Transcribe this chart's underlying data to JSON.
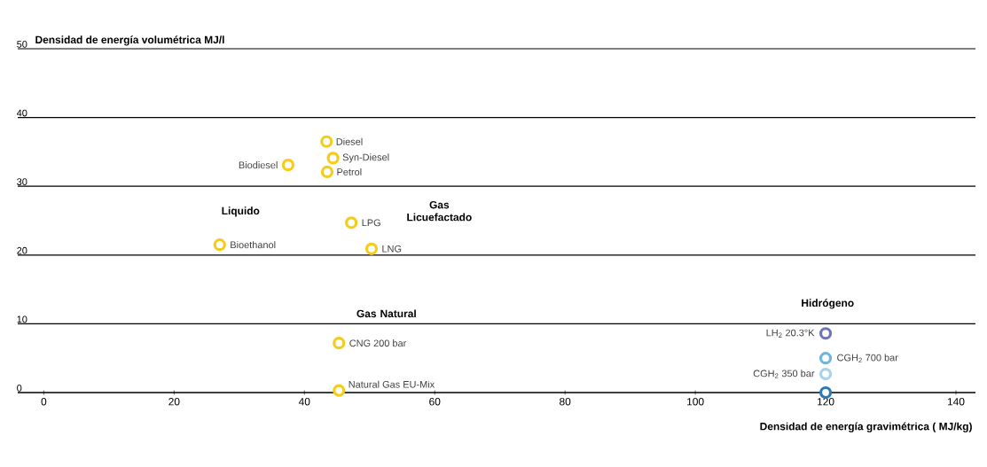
{
  "chart_data": {
    "type": "scatter",
    "xlabel": "Densidad de energía gravimétrica ( MJ/kg)",
    "ylabel": "Densidad de energía volumétrica MJ/l",
    "xlim": [
      -4,
      143
    ],
    "ylim": [
      0,
      50
    ],
    "xticks": [
      0,
      20,
      40,
      60,
      80,
      100,
      120,
      140
    ],
    "yticks": [
      0,
      10,
      20,
      30,
      40,
      50
    ],
    "grid": "y",
    "marker": "circle",
    "series": [
      {
        "color": "#f5cc1a",
        "x": [
          43.4,
          44.4,
          43.5,
          37.5,
          27,
          47.2,
          50.3,
          45.3,
          45.3
        ],
        "values": [
          36.5,
          34.1,
          32.1,
          33.1,
          21.5,
          24.7,
          20.9,
          7.2,
          0.3
        ]
      },
      {
        "colors": [
          "#7074b4",
          "#6db6dc",
          "#a8d3ea",
          "#2a7ab5"
        ],
        "x": [
          120,
          120,
          120,
          120
        ],
        "values": [
          8.6,
          5,
          2.7,
          0
        ]
      }
    ],
    "annotations": [
      {
        "text": "Diesel",
        "x": 43.4,
        "y": 36.5
      },
      {
        "text": "Syn-Diesel",
        "x": 44.4,
        "y": 34.1
      },
      {
        "text": "Petrol",
        "x": 43.5,
        "y": 32.1
      },
      {
        "text": "Biodiesel",
        "x": 37.5,
        "y": 33.1
      },
      {
        "text": "Bioethanol",
        "x": 27,
        "y": 21.5
      },
      {
        "text": "LPG",
        "x": 47.2,
        "y": 24.7
      },
      {
        "text": "LNG",
        "x": 50.3,
        "y": 20.9
      },
      {
        "text": "CNG 200 bar",
        "x": 45.3,
        "y": 7.2
      },
      {
        "text": "Natural Gas EU-Mix",
        "x": 45.3,
        "y": 0.3
      },
      {
        "text": "LH$_{2}$ 20.3°K",
        "x": 120,
        "y": 8.6
      },
      {
        "text": "CGH$_{2}$ 700 bar",
        "x": 120,
        "y": 5
      },
      {
        "text": "CGH$_{2}$ 350 bar",
        "x": 120,
        "y": 2.7
      },
      "Liquido",
      "Gas Licuefactado",
      "Gas Natural",
      "Hidrógeno"
    ]
  }
}
